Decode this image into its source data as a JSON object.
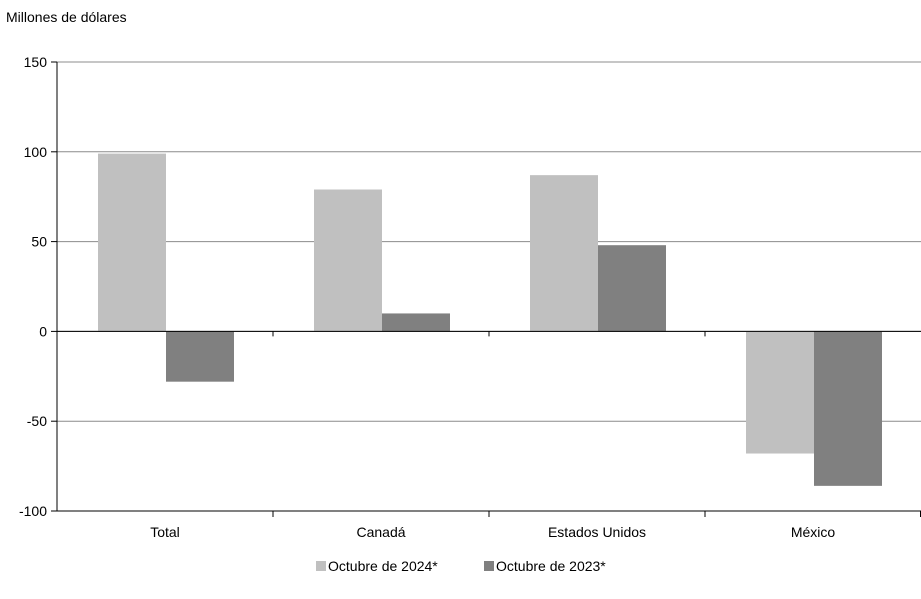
{
  "chart_data": {
    "type": "bar",
    "title": "",
    "ylabel": "Millones de dólares",
    "xlabel": "",
    "categories": [
      "Total",
      "Canadá",
      "Estados Unidos",
      "México"
    ],
    "series": [
      {
        "name": "Octubre de 2024*",
        "color": "#c0c0c0",
        "values": [
          99,
          79,
          87,
          -68
        ]
      },
      {
        "name": "Octubre de 2023*",
        "color": "#808080",
        "values": [
          -28,
          10,
          48,
          -86
        ]
      }
    ],
    "ylim": [
      -100,
      150
    ],
    "yticks": [
      -100,
      -50,
      0,
      50,
      100,
      150
    ],
    "ytick_labels": [
      "-100",
      "-50",
      "0",
      "50",
      "100",
      "150"
    ],
    "grid": true,
    "legend_position": "bottom-center"
  }
}
